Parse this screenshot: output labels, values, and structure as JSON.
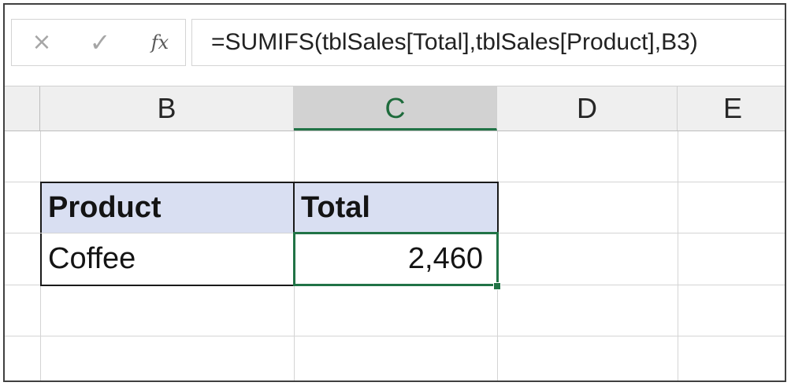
{
  "formula_bar": {
    "cancel_symbol": "×",
    "enter_symbol": "✓",
    "fx_label": "fx",
    "formula": "=SUMIFS(tblSales[Total],tblSales[Product],B3)"
  },
  "columns": [
    {
      "letter": "B",
      "selected": false
    },
    {
      "letter": "C",
      "selected": true
    },
    {
      "letter": "D",
      "selected": false
    },
    {
      "letter": "E",
      "selected": false
    }
  ],
  "table": {
    "headers": [
      "Product",
      "Total"
    ],
    "rows": [
      {
        "product": "Coffee",
        "total": "2,460"
      }
    ]
  },
  "active_cell": "C3",
  "colors": {
    "accent_green": "#217346",
    "table_header_fill": "#d9dff2",
    "header_bar_bg": "#efefef"
  }
}
